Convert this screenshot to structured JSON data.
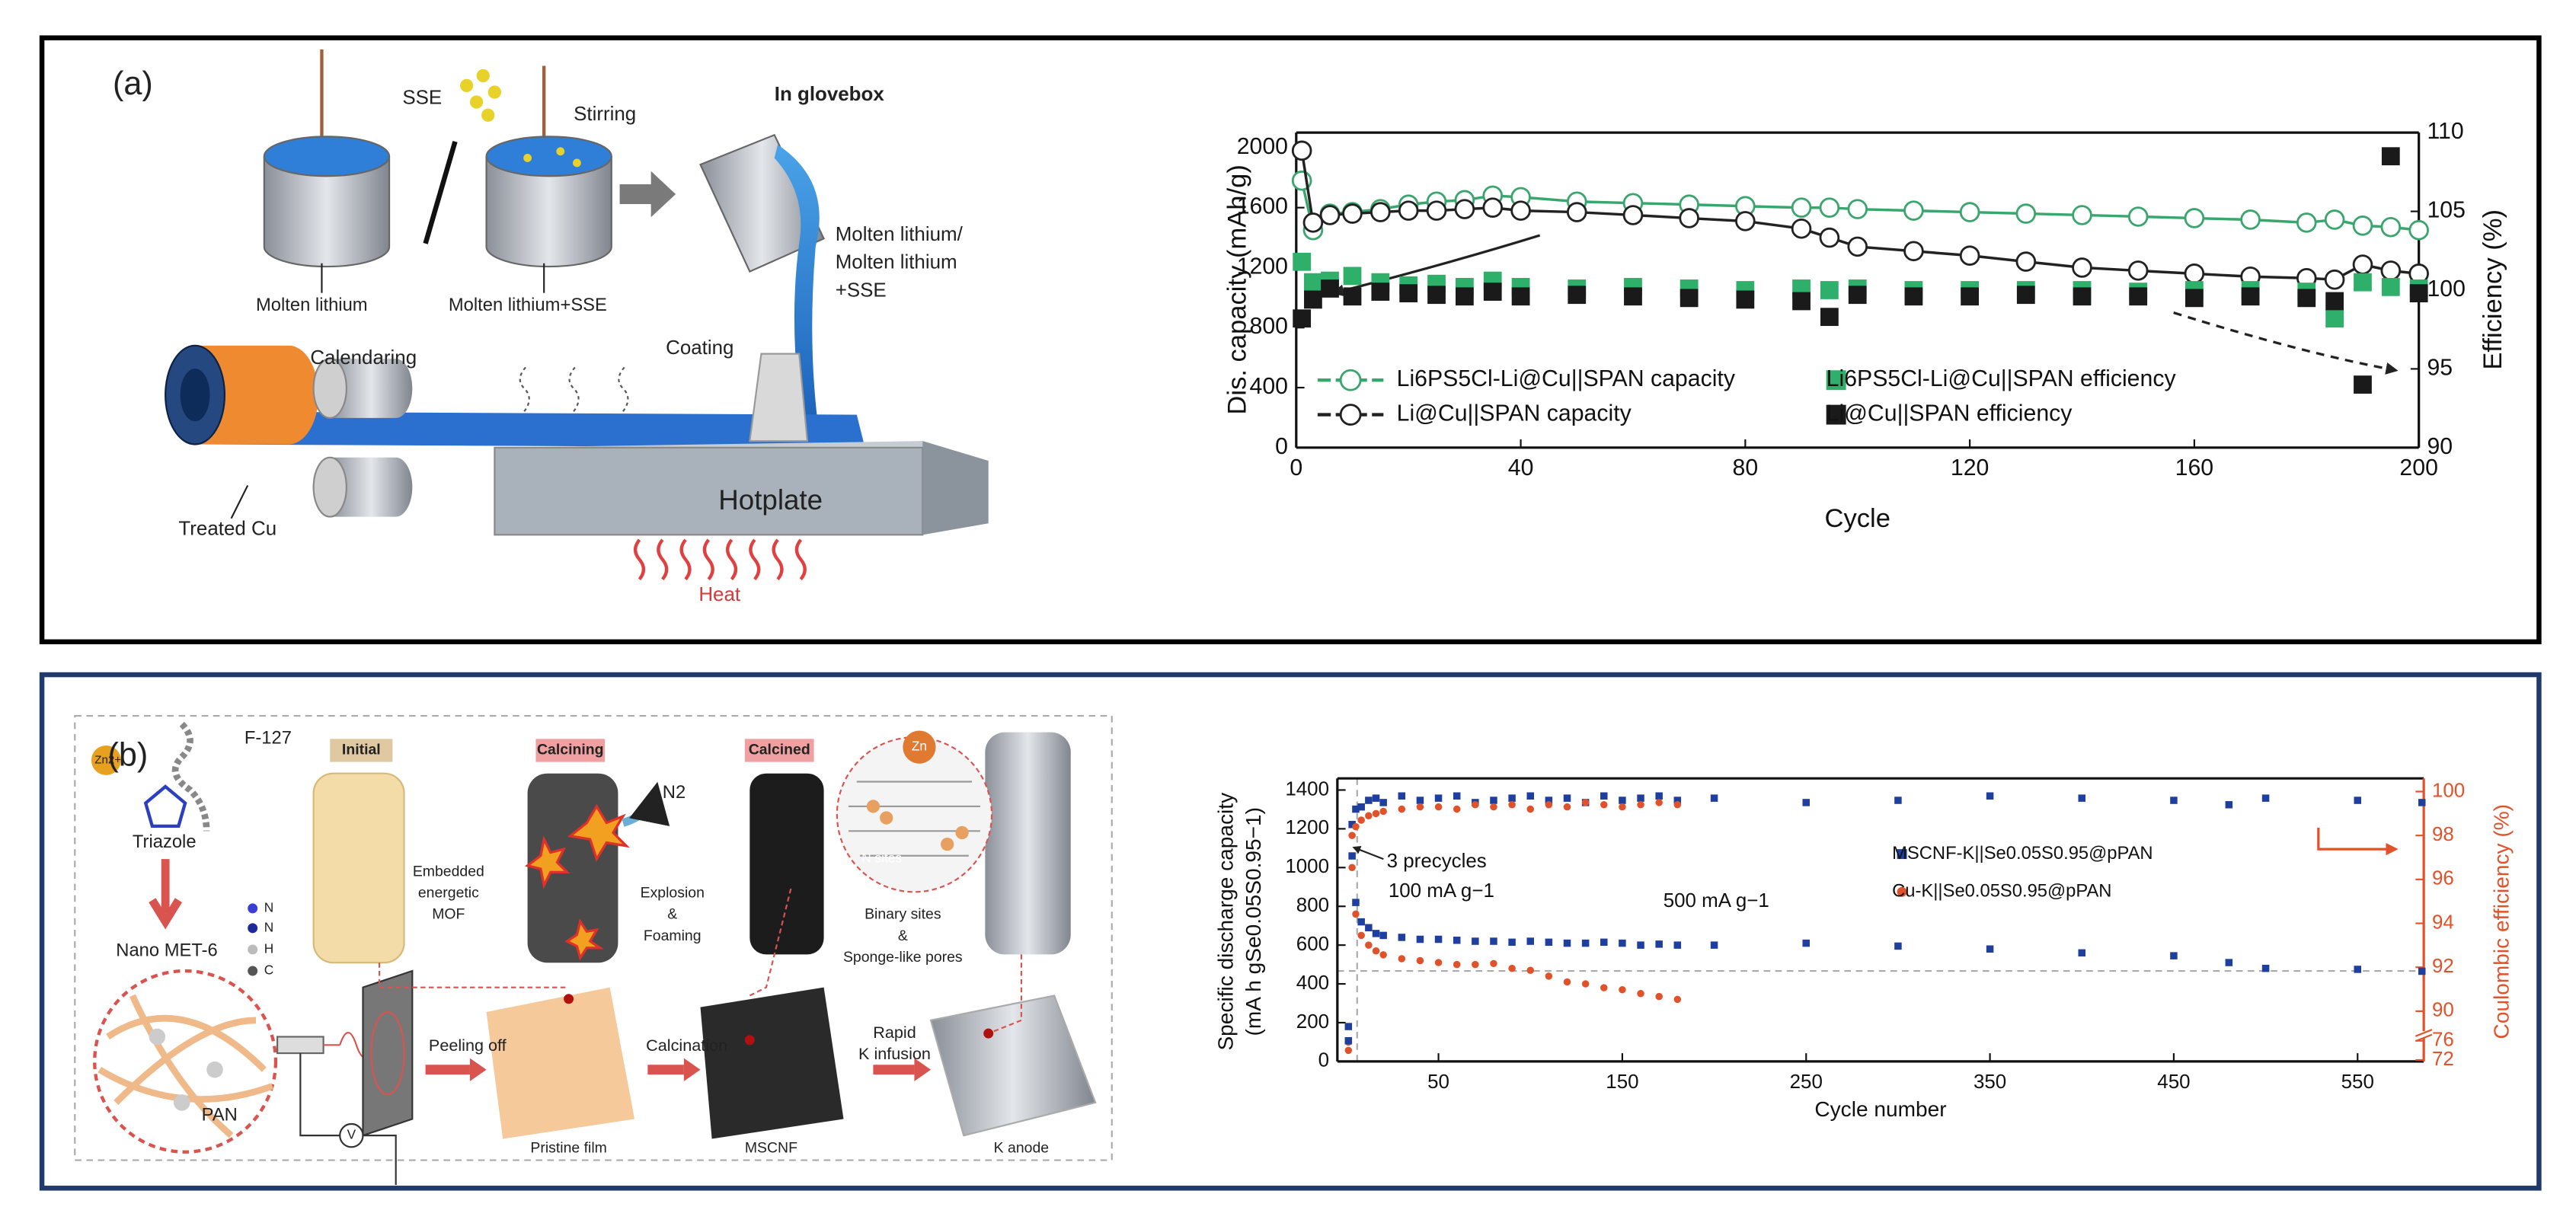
{
  "panel_a": {
    "label": "(a)",
    "schematic": {
      "sse": "SSE",
      "stirring": "Stirring",
      "glovebox": "In glovebox",
      "molten": "Molten lithium",
      "molten_sse": "Molten lithium+SSE",
      "pour": [
        "Molten lithium/",
        "Molten lithium",
        "+SSE"
      ],
      "calendaring": "Calendaring",
      "coating": "Coating",
      "treated_cu": "Treated Cu",
      "hotplate": "Hotplate",
      "heat": "Heat"
    }
  },
  "panel_b": {
    "label": "(b)",
    "schematic": {
      "zn": "Zn2+",
      "f127": "F-127",
      "triazole": "Triazole",
      "met6": "Nano MET-6",
      "pan": "PAN",
      "atoms": [
        "N",
        "N",
        "H",
        "C"
      ],
      "initial": "Initial",
      "calcining": "Calcining",
      "calcined": "Calcined",
      "mof": [
        "Embedded",
        "energetic",
        "MOF"
      ],
      "n2": "N2",
      "explosion": [
        "Explosion",
        "&",
        "Foaming"
      ],
      "binary": [
        "Binary sites",
        "&",
        "Sponge-like pores"
      ],
      "zn_site": "Zn",
      "n_sites": "N sites",
      "peeling": "Peeling off",
      "pristine": "Pristine film",
      "calcination": "Calcination",
      "mscnf": "MSCNF",
      "infusion": [
        "Rapid",
        "K infusion"
      ],
      "k_anode": "K anode",
      "volt": "V"
    }
  },
  "chart_data": [
    {
      "type": "line",
      "xlabel": "Cycle",
      "ylabel": [
        "Dis. capacity (mAh/g)"
      ],
      "y2label": "Efficiency (%)",
      "x": [
        1,
        3,
        6,
        10,
        15,
        20,
        25,
        30,
        35,
        40,
        50,
        60,
        70,
        80,
        90,
        95,
        100,
        110,
        120,
        130,
        140,
        150,
        160,
        170,
        180,
        185,
        190,
        195,
        200
      ],
      "xlim": [
        0,
        200
      ],
      "xticks": [
        0,
        40,
        80,
        120,
        160,
        200
      ],
      "ylim": [
        0,
        2100
      ],
      "yticks": [
        0,
        400,
        800,
        1200,
        1600,
        2000
      ],
      "y2lim": [
        90,
        110
      ],
      "y2ticks": [
        90,
        95,
        100,
        105,
        110
      ],
      "series": [
        {
          "name": "Li6PS5Cl-Li@Cu||SPAN capacity",
          "color": "#3aa66e",
          "marker": "circle-open",
          "line": true,
          "values": [
            1780,
            1450,
            1560,
            1570,
            1590,
            1620,
            1640,
            1650,
            1680,
            1670,
            1640,
            1630,
            1620,
            1610,
            1600,
            1600,
            1590,
            1580,
            1570,
            1560,
            1550,
            1540,
            1530,
            1520,
            1500,
            1520,
            1480,
            1470,
            1450
          ]
        },
        {
          "name": "Li@Cu||SPAN capacity",
          "color": "#222222",
          "marker": "circle-open",
          "line": true,
          "values": [
            1980,
            1500,
            1550,
            1560,
            1570,
            1580,
            1580,
            1590,
            1600,
            1580,
            1570,
            1550,
            1530,
            1510,
            1460,
            1400,
            1340,
            1310,
            1280,
            1240,
            1200,
            1180,
            1160,
            1140,
            1130,
            1120,
            1220,
            1180,
            1160
          ]
        },
        {
          "name": "Li6PS5Cl-Li@Cu||SPAN efficiency",
          "color": "#2fb06a",
          "marker": "square",
          "axis": "y2",
          "values": [
            101.8,
            100.5,
            100.6,
            100.9,
            100.5,
            100.3,
            100.4,
            100.2,
            100.6,
            100.2,
            100.1,
            100.2,
            100.1,
            100,
            100.1,
            100,
            100.1,
            100,
            100,
            100,
            100,
            99.9,
            100,
            100,
            99.9,
            98.2,
            100.5,
            100.2,
            100.1
          ]
        },
        {
          "name": "Li@Cu||SPAN efficiency",
          "color": "#1a1a1a",
          "marker": "square",
          "axis": "y2",
          "values": [
            98.2,
            99.4,
            100.1,
            99.6,
            99.9,
            99.8,
            99.7,
            99.6,
            99.9,
            99.6,
            99.7,
            99.6,
            99.5,
            99.4,
            99.3,
            98.3,
            99.7,
            99.6,
            99.6,
            99.7,
            99.6,
            99.6,
            99.5,
            99.6,
            99.5,
            99.3,
            94,
            108.5,
            99.8
          ]
        }
      ]
    },
    {
      "type": "scatter",
      "xlabel": "Cycle number",
      "ylabel": [
        "Specific discharge capacity",
        "(mA h gSe0.05S0.95−1)"
      ],
      "y2label": "Coulombic efficiency (%)",
      "y2color": "#e0522a",
      "annotations": [
        "3 precycles",
        "100 mA g−1",
        "500 mA g−1"
      ],
      "x": [
        1,
        3,
        5,
        8,
        12,
        16,
        20,
        30,
        40,
        50,
        60,
        70,
        80,
        90,
        100,
        110,
        120,
        130,
        140,
        150,
        160,
        170,
        180,
        200,
        250,
        300,
        350,
        400,
        450,
        480,
        500,
        550,
        585
      ],
      "xlim": [
        -5,
        586
      ],
      "xticks": [
        50,
        150,
        250,
        350,
        450,
        550
      ],
      "ylim": [
        0,
        1460
      ],
      "yticks": [
        0,
        200,
        400,
        600,
        800,
        1000,
        1200,
        1400
      ],
      "y2lim": [
        71.7,
        100.6
      ],
      "y2break": [
        77,
        89
      ],
      "y2ticks": [
        72,
        76,
        90,
        92,
        94,
        96,
        98,
        100
      ],
      "series": [
        {
          "name": "MSCNF-K||Se0.05S0.95@pPAN",
          "color": "#1f3f9f",
          "marker": "square",
          "values": [
            180,
            1060,
            820,
            720,
            690,
            660,
            650,
            640,
            630,
            630,
            625,
            620,
            620,
            615,
            620,
            615,
            610,
            610,
            615,
            610,
            600,
            605,
            600,
            600,
            610,
            595,
            580,
            560,
            545,
            510,
            480,
            475,
            465
          ]
        },
        {
          "name": "Cu-K||Se0.05S0.95@pPAN",
          "color": "#e0522a",
          "marker": "circle",
          "values": [
            100,
            1000,
            760,
            650,
            600,
            570,
            550,
            530,
            520,
            510,
            500,
            500,
            505,
            480,
            470,
            440,
            410,
            400,
            380,
            370,
            350,
            335,
            320,
            null,
            null,
            null,
            null,
            null,
            null,
            null,
            null,
            null,
            null
          ]
        },
        {
          "name": "MSCNF-K||Se0.05S0.95@pPAN",
          "color": "#1f3f9f",
          "marker": "square",
          "axis": "y2",
          "values": [
            76,
            98.5,
            99.2,
            99.3,
            99.6,
            99.7,
            99.5,
            99.8,
            99.6,
            99.7,
            99.8,
            99.5,
            99.6,
            99.7,
            99.8,
            99.6,
            99.7,
            99.5,
            99.8,
            99.6,
            99.7,
            99.8,
            99.6,
            99.7,
            99.5,
            99.6,
            99.8,
            99.7,
            99.6,
            99.4,
            99.7,
            99.6,
            99.5
          ]
        },
        {
          "name": "Cu-K||Se0.05S0.95@pPAN",
          "color": "#e0522a",
          "marker": "circle",
          "axis": "y2",
          "values": [
            74,
            98.0,
            98.4,
            98.7,
            98.9,
            99.0,
            99.1,
            99.2,
            99.3,
            99.3,
            99.2,
            99.4,
            99.3,
            99.4,
            99.2,
            99.4,
            99.3,
            99.5,
            99.4,
            99.3,
            99.4,
            99.5,
            99.4,
            null,
            null,
            null,
            null,
            null,
            null,
            null,
            null,
            null,
            null
          ]
        }
      ]
    }
  ]
}
